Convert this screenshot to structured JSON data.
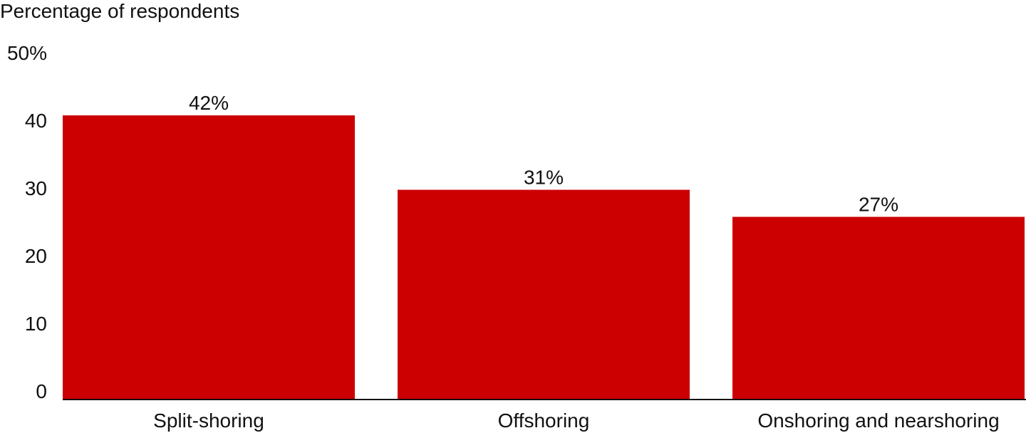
{
  "chart_data": {
    "type": "bar",
    "title": "",
    "ylabel": "Percentage of respondents",
    "xlabel": "",
    "categories": [
      "Split-shoring",
      "Offshoring",
      "Onshoring and nearshoring"
    ],
    "values": [
      42,
      31,
      27
    ],
    "data_labels": [
      "42%",
      "31%",
      "27%"
    ],
    "ylim": [
      0,
      50
    ],
    "yticks": [
      0,
      10,
      20,
      30,
      40,
      50
    ],
    "ytick_labels": [
      "0",
      "10",
      "20",
      "30",
      "40",
      "50%"
    ],
    "grid": false,
    "bar_color": "#cc0000"
  }
}
